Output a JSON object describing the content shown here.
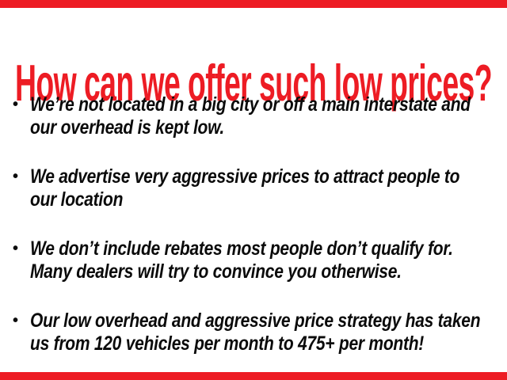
{
  "page": {
    "background": "#ffffff",
    "accent_red": "#ED1C24",
    "text_black": "#0B0B0B"
  },
  "title": {
    "text": "How can we offer such low prices?"
  },
  "bullets": {
    "marker": "•",
    "items": [
      {
        "line1": "We’re not located in a big city or off a main interstate and",
        "line2": "our overhead is kept low."
      },
      {
        "line1": "We advertise very aggressive prices to attract people to",
        "line2": "our location"
      },
      {
        "line1": "We don’t include rebates most people don’t qualify for.",
        "line2": "Many dealers will try to convince you otherwise."
      },
      {
        "line1": "Our low overhead and aggressive price strategy has taken",
        "line2": "us from 120 vehicles per month to 475+ per month!"
      }
    ]
  }
}
